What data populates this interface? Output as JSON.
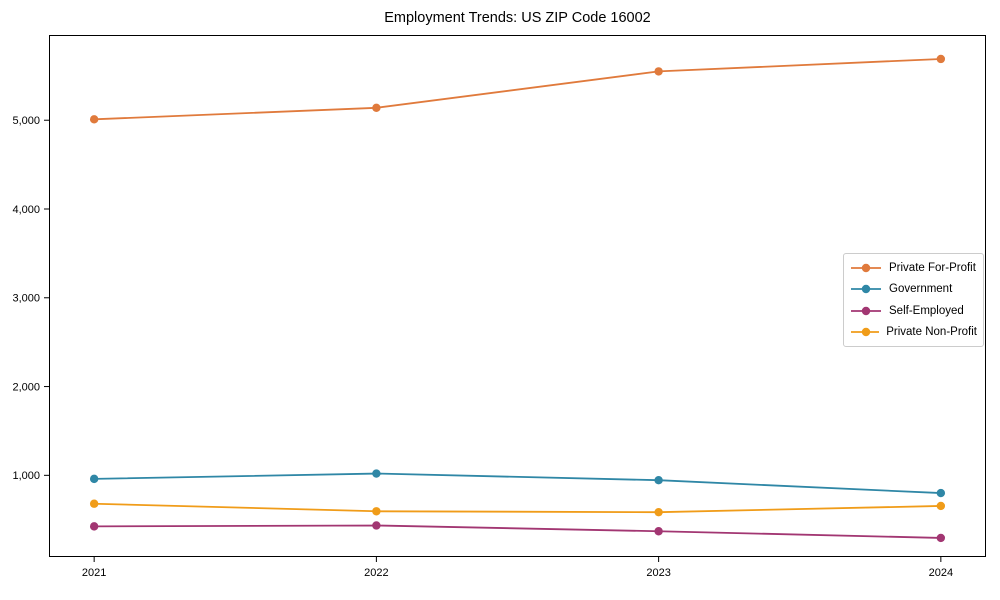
{
  "chart_data": {
    "type": "line",
    "title": "Employment Trends: US ZIP Code 16002",
    "x": [
      2021,
      2022,
      2023,
      2024
    ],
    "categories": [
      "2021",
      "2022",
      "2023",
      "2024"
    ],
    "series": [
      {
        "name": "Private For-Profit",
        "color": "#e07a3c",
        "values": [
          5010,
          5140,
          5550,
          5690
        ]
      },
      {
        "name": "Government",
        "color": "#2f87a6",
        "values": [
          960,
          1020,
          945,
          800
        ]
      },
      {
        "name": "Self-Employed",
        "color": "#a23672",
        "values": [
          425,
          435,
          370,
          295
        ]
      },
      {
        "name": "Private Non-Profit",
        "color": "#f09c19",
        "values": [
          680,
          595,
          585,
          655
        ]
      }
    ],
    "xlabel": "",
    "ylabel": "",
    "xlim": [
      2020.84,
      2024.16
    ],
    "ylim": [
      80,
      5960
    ],
    "yticks": [
      1000,
      2000,
      3000,
      4000,
      5000
    ],
    "ytick_labels": [
      "1,000",
      "2,000",
      "3,000",
      "4,000",
      "5,000"
    ],
    "grid": false,
    "legend_position": "center right",
    "axis_color": "#000000",
    "background_color": "#ffffff"
  }
}
